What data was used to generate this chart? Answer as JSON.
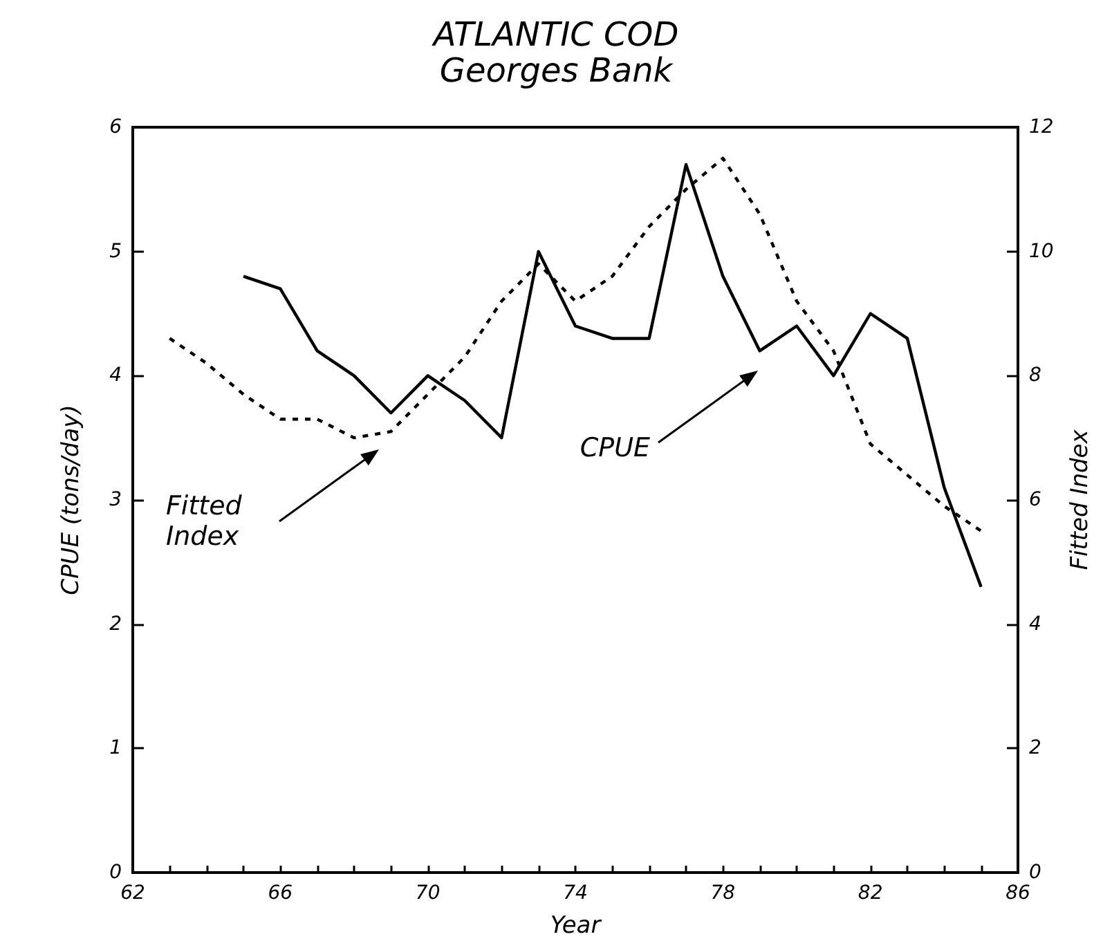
{
  "chart_data": {
    "type": "line",
    "title": "ATLANTIC COD",
    "subtitle": "Georges Bank",
    "xlabel": "Year",
    "ylabel": "CPUE (tons/day)",
    "y2label": "Fitted Index",
    "xlim": [
      62,
      86
    ],
    "xticks": [
      62,
      {
        "value": 63,
        "label": null
      },
      {
        "value": 64,
        "label": null
      },
      {
        "value": 65,
        "label": null
      },
      66,
      {
        "value": 67,
        "label": null
      },
      {
        "value": 68,
        "label": null
      },
      {
        "value": 69,
        "label": null
      },
      70,
      {
        "value": 71,
        "label": null
      },
      {
        "value": 72,
        "label": null
      },
      {
        "value": 73,
        "label": null
      },
      74,
      {
        "value": 75,
        "label": null
      },
      {
        "value": 76,
        "label": null
      },
      {
        "value": 77,
        "label": null
      },
      78,
      {
        "value": 79,
        "label": null
      },
      {
        "value": 80,
        "label": null
      },
      {
        "value": 81,
        "label": null
      },
      82,
      {
        "value": 83,
        "label": null
      },
      {
        "value": 84,
        "label": null
      },
      {
        "value": 85,
        "label": null
      },
      86
    ],
    "ylim": [
      0,
      6
    ],
    "yticks": [
      0,
      1,
      2,
      3,
      4,
      5,
      6
    ],
    "y2lim": [
      0,
      12
    ],
    "y2ticks": [
      0,
      2,
      4,
      6,
      8,
      10,
      12
    ],
    "grid": false,
    "marker": "none",
    "series": [
      {
        "color": "#000000",
        "line_style": "solid",
        "x": [
          65,
          66,
          67,
          68,
          69,
          70,
          71,
          72,
          73,
          74,
          75,
          76,
          77,
          78,
          79,
          80,
          81,
          82,
          83,
          84,
          85
        ],
        "values": [
          4.8,
          4.7,
          4.2,
          4.0,
          3.7,
          4.0,
          3.8,
          3.5,
          5.0,
          4.4,
          4.3,
          4.3,
          5.7,
          4.8,
          4.2,
          4.4,
          4.0,
          4.5,
          4.3,
          3.1,
          2.3
        ]
      },
      {
        "color": "#000000",
        "line_style": "dashed",
        "axis": "y2",
        "x": [
          63,
          64,
          65,
          66,
          67,
          68,
          69,
          70,
          71,
          72,
          73,
          74,
          75,
          76,
          77,
          78,
          79,
          80,
          81,
          82,
          83,
          84,
          85
        ],
        "values": [
          8.6,
          8.2,
          7.7,
          7.3,
          7.3,
          7.0,
          7.1,
          7.7,
          8.3,
          9.2,
          9.8,
          9.2,
          9.6,
          10.4,
          11.0,
          11.5,
          10.6,
          9.2,
          8.4,
          6.9,
          6.4,
          5.9,
          5.5
        ]
      }
    ],
    "annotations": [
      "Fitted\nIndex",
      "CPUE"
    ]
  }
}
